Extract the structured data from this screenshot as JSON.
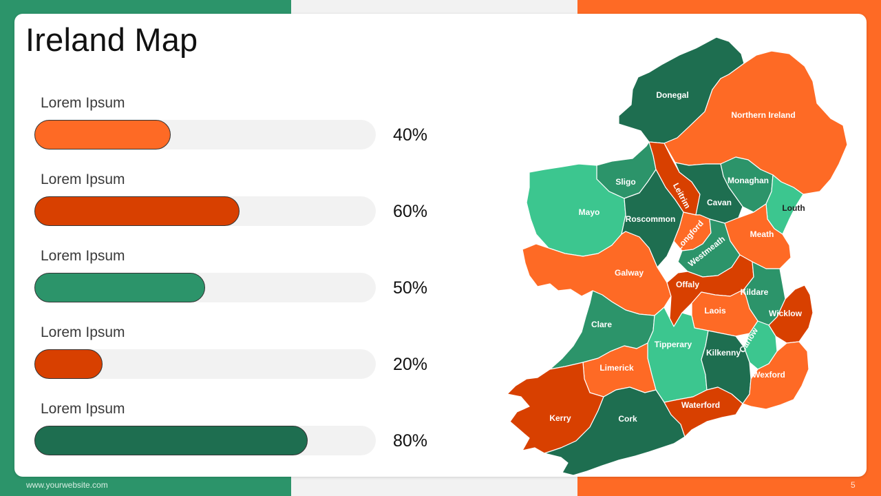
{
  "title": "Ireland Map",
  "colors": {
    "green_band": "#2c946a",
    "orange_band": "#fe6a25",
    "dark_green": "#1e6e50",
    "mid_green": "#2c946a",
    "light_green": "#3cc68f",
    "orange": "#fe6a25",
    "dark_orange": "#d84000",
    "track": "#f2f2f2"
  },
  "bars": [
    {
      "label": "Lorem Ipsum",
      "value": 0.4,
      "value_label": "40%",
      "color": "#fe6a25"
    },
    {
      "label": "Lorem Ipsum",
      "value": 0.6,
      "value_label": "60%",
      "color": "#d84000"
    },
    {
      "label": "Lorem Ipsum",
      "value": 0.5,
      "value_label": "50%",
      "color": "#2c946a"
    },
    {
      "label": "Lorem Ipsum",
      "value": 0.2,
      "value_label": "20%",
      "color": "#d84000"
    },
    {
      "label": "Lorem Ipsum",
      "value": 0.8,
      "value_label": "80%",
      "color": "#1e6e50"
    }
  ],
  "map": {
    "counties": {
      "donegal": "Donegal",
      "northern_ireland": "Northern Ireland",
      "sligo": "Sligo",
      "leitrim": "Leitrim",
      "monaghan": "Monaghan",
      "cavan": "Cavan",
      "louth": "Louth",
      "mayo": "Mayo",
      "roscommon": "Roscommon",
      "longford": "Longford",
      "meath": "Meath",
      "westmeath": "Westmeath",
      "galway": "Galway",
      "offaly": "Offaly",
      "kildare": "Kildare",
      "laois": "Laois",
      "wicklow": "Wicklow",
      "clare": "Clare",
      "carlow": "Carlow",
      "tipperary": "Tipperary",
      "kilkenny": "Kilkenny",
      "limerick": "Limerick",
      "wexford": "Wexford",
      "kerry": "Kerry",
      "cork": "Cork",
      "waterford": "Waterford"
    }
  },
  "footer": {
    "url": "www.yourwebsite.com",
    "page": "5"
  }
}
